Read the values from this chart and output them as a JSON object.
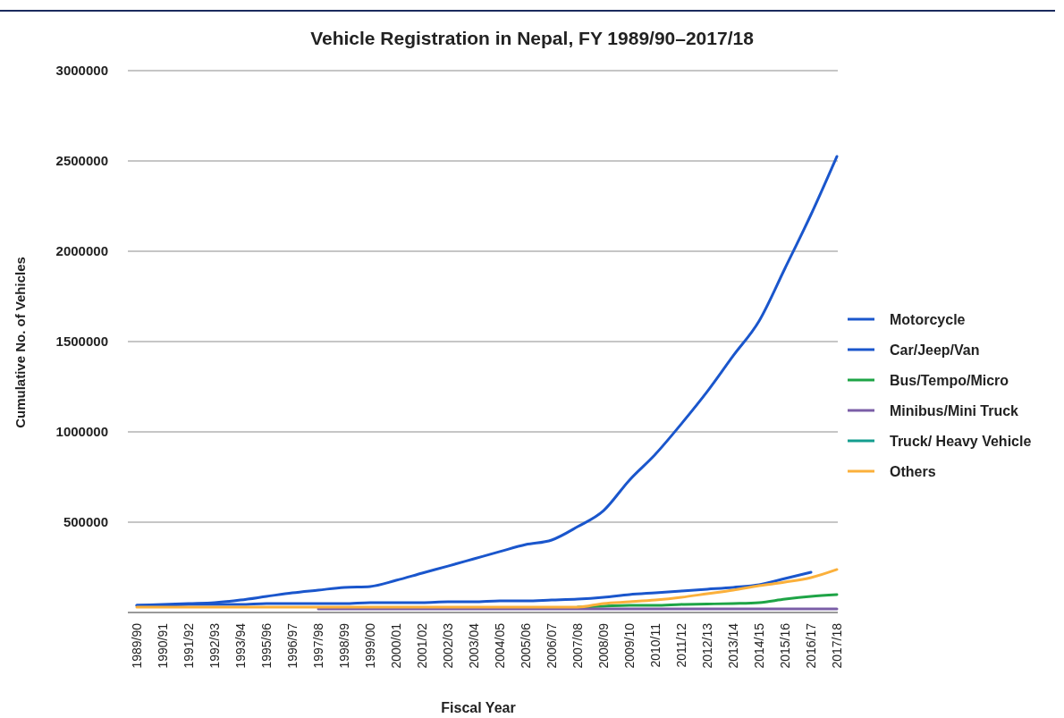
{
  "chart_data": {
    "type": "line",
    "title": "Vehicle Registration in Nepal, FY 1989/90–2017/18",
    "xlabel": "Fiscal Year",
    "ylabel": "Cumulative No. of Vehicles",
    "categories": [
      "1989/90",
      "1990/91",
      "1991/92",
      "1992/93",
      "1993/94",
      "1995/96",
      "1996/97",
      "1997/98",
      "1998/99",
      "1999/00",
      "2000/01",
      "2001/02",
      "2002/03",
      "2003/04",
      "2004/05",
      "2005/06",
      "2006/07",
      "2007/08",
      "2008/09",
      "2009/10",
      "2010/11",
      "2011/12",
      "2012/13",
      "2013/14",
      "2014/15",
      "2015/16",
      "2016/17",
      "2017/18"
    ],
    "series": [
      {
        "name": "Motorcycle",
        "color": "#1a56cc",
        "values": [
          40000,
          45000,
          50000,
          55000,
          69000,
          89000,
          109000,
          124000,
          139000,
          144000,
          178000,
          218000,
          257000,
          297000,
          337000,
          376000,
          401000,
          475000,
          564000,
          733000,
          876000,
          1044000,
          1223000,
          1421000,
          1614000,
          1906000,
          2203000,
          2525000
        ]
      },
      {
        "name": "Car/Jeep/Van",
        "color": "#1a56cc",
        "values": [
          40000,
          40000,
          45000,
          45000,
          45000,
          50000,
          50000,
          50000,
          50000,
          55000,
          55000,
          55000,
          59000,
          59000,
          64000,
          64000,
          69000,
          74000,
          84000,
          99000,
          109000,
          119000,
          129000,
          139000,
          153000,
          188000,
          223000,
          null
        ]
      },
      {
        "name": "Bus/Tempo/Micro",
        "color": "#1ea446",
        "values": [
          null,
          null,
          null,
          null,
          null,
          null,
          null,
          null,
          null,
          null,
          null,
          null,
          null,
          null,
          null,
          null,
          null,
          30000,
          35000,
          40000,
          40000,
          45000,
          47000,
          50000,
          55000,
          74000,
          89000,
          99000
        ]
      },
      {
        "name": "Minibus/Mini Truck",
        "color": "#7b5ea7",
        "values": [
          null,
          null,
          null,
          null,
          null,
          null,
          null,
          20000,
          20000,
          20000,
          20000,
          20000,
          20000,
          20000,
          20000,
          20000,
          20000,
          20000,
          20000,
          20000,
          20000,
          20000,
          20000,
          20000,
          20000,
          20000,
          20000,
          20000
        ]
      },
      {
        "name": "Truck/ Heavy Vehicle",
        "color": "#149e8f",
        "values": [
          null,
          null,
          null,
          null,
          null,
          null,
          null,
          null,
          null,
          null,
          null,
          null,
          null,
          null,
          null,
          null,
          null,
          null,
          null,
          null,
          null,
          null,
          null,
          null,
          null,
          null,
          null,
          null
        ]
      },
      {
        "name": "Others",
        "color": "#fbb03b",
        "values": [
          30000,
          30000,
          30000,
          30000,
          30000,
          30000,
          30000,
          30000,
          30000,
          30000,
          30000,
          30000,
          30000,
          30000,
          30000,
          30000,
          30000,
          30000,
          50000,
          59000,
          69000,
          84000,
          104000,
          124000,
          148000,
          168000,
          193000,
          238000
        ]
      }
    ],
    "ylim": [
      0,
      3000000
    ],
    "yticks": [
      500000,
      1000000,
      1500000,
      2000000,
      2500000,
      3000000
    ],
    "grid": "y",
    "legend": "right",
    "marker": "none",
    "line_style": "solid"
  }
}
